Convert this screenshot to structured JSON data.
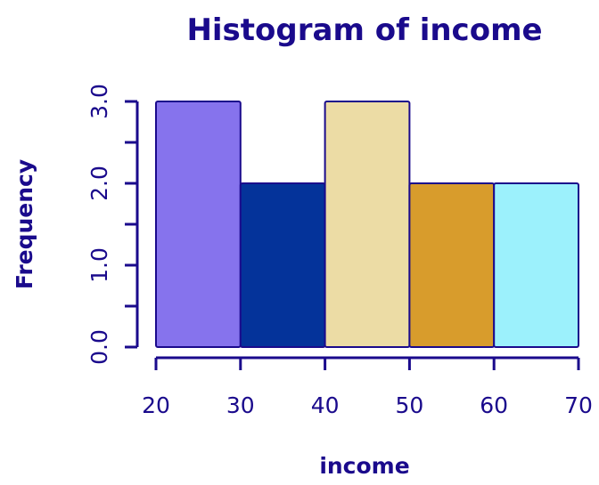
{
  "chart_data": {
    "type": "bar",
    "subtype": "histogram",
    "title": "Histogram of income",
    "xlabel": "income",
    "ylabel": "Frequency",
    "bins": [
      {
        "start": 20,
        "end": 30,
        "count": 3,
        "color": "#8673ED"
      },
      {
        "start": 30,
        "end": 40,
        "count": 2,
        "color": "#04339A"
      },
      {
        "start": 40,
        "end": 50,
        "count": 3,
        "color": "#ECDCA5"
      },
      {
        "start": 50,
        "end": 60,
        "count": 2,
        "color": "#D89C2C"
      },
      {
        "start": 60,
        "end": 70,
        "count": 2,
        "color": "#9CF1FC"
      }
    ],
    "xlim": [
      20,
      70
    ],
    "ylim": [
      0,
      3
    ],
    "x_ticks": [
      "20",
      "30",
      "40",
      "50",
      "60",
      "70"
    ],
    "x_tick_values": [
      20,
      30,
      40,
      50,
      60,
      70
    ],
    "y_ticks": [
      "0.0",
      "1.0",
      "2.0",
      "3.0"
    ],
    "y_tick_values": [
      0,
      1,
      2,
      3
    ],
    "y_minor_tick_values": [
      0.5,
      1.5,
      2.5
    ],
    "grid": false,
    "legend": "none",
    "colors": {
      "text": "#1A0A8C",
      "bar_border": "#1A0A8C",
      "background": "#FFFFFF"
    }
  }
}
